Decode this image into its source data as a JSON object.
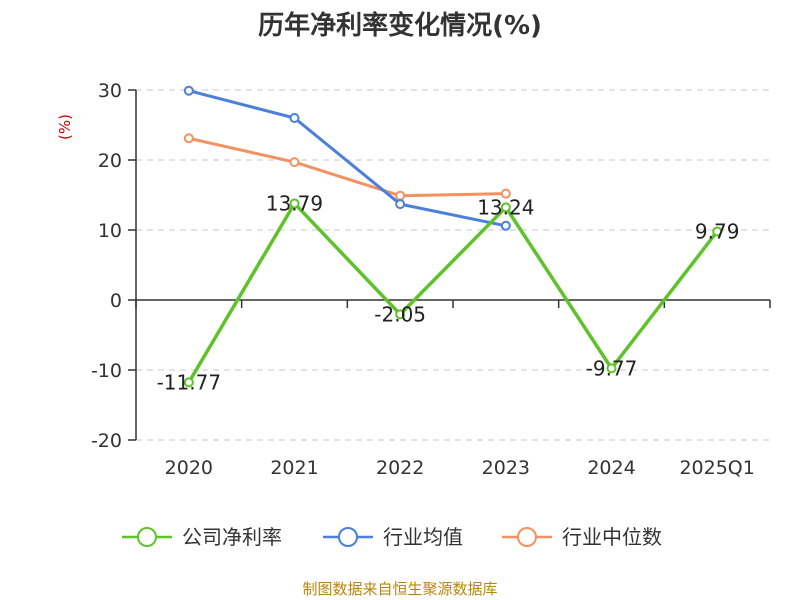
{
  "chart_data": {
    "type": "line",
    "title": "历年净利率变化情况(%)",
    "ylabel": "(%)",
    "xlabel": "",
    "categories": [
      "2020",
      "2021",
      "2022",
      "2023",
      "2024",
      "2025Q1"
    ],
    "ylim": [
      -20,
      30
    ],
    "yticks": [
      30,
      20,
      10,
      0,
      -10,
      -20
    ],
    "grid": true,
    "legend_position": "bottom",
    "series": [
      {
        "name": "公司净利率",
        "color": "#5ec22a",
        "values": [
          -11.77,
          13.79,
          -2.05,
          13.24,
          -9.77,
          9.79
        ],
        "labels": [
          "-11.77",
          "13.79",
          "-2.05",
          "13.24",
          "-9.77",
          "9.79"
        ]
      },
      {
        "name": "行业均值",
        "color": "#4a7fdb",
        "values": [
          29.9,
          26.0,
          13.7,
          10.6,
          null,
          null
        ]
      },
      {
        "name": "行业中位数",
        "color": "#f39160",
        "values": [
          23.1,
          19.7,
          14.9,
          15.2,
          null,
          null
        ]
      }
    ]
  },
  "source": "制图数据来自恒生聚源数据库"
}
